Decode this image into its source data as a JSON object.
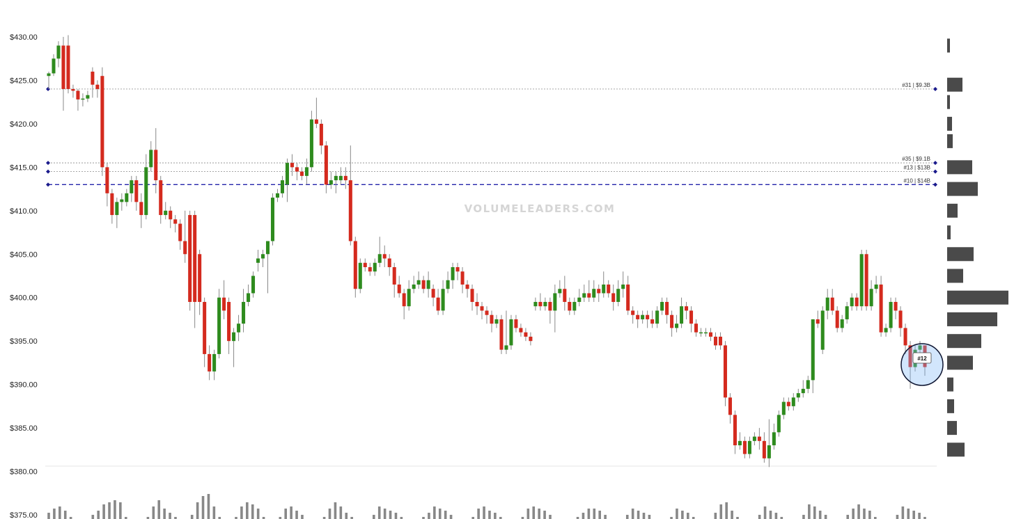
{
  "watermark": "VOLUMELEADERS.COM",
  "colors": {
    "up": "#2e8b1e",
    "down": "#d42a1e",
    "wick": "#888888",
    "volume_bar": "#888888",
    "profile_bar": "#4a4a4a",
    "level_solid": "#2222aa",
    "level_dash": "#999999",
    "marker": "#1a1a8c",
    "highlight": "#7fb6f5"
  },
  "chart_data": {
    "type": "candlestick",
    "ylim": [
      375,
      430
    ],
    "y_ticks": [
      "$430.00",
      "$425.00",
      "$420.00",
      "$415.00",
      "$410.00",
      "$405.00",
      "$400.00",
      "$395.00",
      "$390.00",
      "$385.00",
      "$380.00",
      "$375.00"
    ],
    "y_tick_values": [
      430,
      425,
      420,
      415,
      410,
      405,
      400,
      395,
      390,
      385,
      380,
      375
    ],
    "candles": [
      [
        425.5,
        425.8,
        424.0,
        426.0
      ],
      [
        425.8,
        427.5,
        425.5,
        428.0
      ],
      [
        427.5,
        429.0,
        426.5,
        429.5
      ],
      [
        429.0,
        424.0,
        421.5,
        430.0
      ],
      [
        429.0,
        424.0,
        423.5,
        430.2
      ],
      [
        424.0,
        423.8,
        423.0,
        424.5
      ],
      [
        423.8,
        422.8,
        421.5,
        424.0
      ],
      [
        422.8,
        422.9,
        422.0,
        423.5
      ],
      [
        422.9,
        423.3,
        422.5,
        423.8
      ],
      [
        426.0,
        424.5,
        423.0,
        426.5
      ],
      [
        424.5,
        424.0,
        423.0,
        425.0
      ],
      [
        425.5,
        415.0,
        414.0,
        426.5
      ],
      [
        415.0,
        412.0,
        410.5,
        415.5
      ],
      [
        412.0,
        409.5,
        408.5,
        412.5
      ],
      [
        409.5,
        411.0,
        408.0,
        411.5
      ],
      [
        411.0,
        411.3,
        410.0,
        412.0
      ],
      [
        411.0,
        412.0,
        410.5,
        412.5
      ],
      [
        412.0,
        413.5,
        411.0,
        414.0
      ],
      [
        413.5,
        411.0,
        410.0,
        414.0
      ],
      [
        411.0,
        409.5,
        408.0,
        412.0
      ],
      [
        409.5,
        415.0,
        409.0,
        416.5
      ],
      [
        415.0,
        417.0,
        414.5,
        418.0
      ],
      [
        417.0,
        413.5,
        412.0,
        419.5
      ],
      [
        413.5,
        409.5,
        408.5,
        414.0
      ],
      [
        409.5,
        410.0,
        409.0,
        411.0
      ],
      [
        410.0,
        409.0,
        408.0,
        410.5
      ],
      [
        409.0,
        408.5,
        407.5,
        409.5
      ],
      [
        408.5,
        406.5,
        405.5,
        409.0
      ],
      [
        406.5,
        405.0,
        404.0,
        410.0
      ],
      [
        409.5,
        399.5,
        398.5,
        410.0
      ],
      [
        409.5,
        399.5,
        396.5,
        410.0
      ],
      [
        405.0,
        399.5,
        398.0,
        405.5
      ],
      [
        399.5,
        393.5,
        392.0,
        400.0
      ],
      [
        393.5,
        391.5,
        390.5,
        394.5
      ],
      [
        391.5,
        393.5,
        390.5,
        394.0
      ],
      [
        393.5,
        400.0,
        393.0,
        401.0
      ],
      [
        400.0,
        398.5,
        397.5,
        402.0
      ],
      [
        399.5,
        395.0,
        393.5,
        400.0
      ],
      [
        395.0,
        396.0,
        392.0,
        396.5
      ],
      [
        396.0,
        397.0,
        395.0,
        398.0
      ],
      [
        397.0,
        399.5,
        396.0,
        401.0
      ],
      [
        399.5,
        400.5,
        399.0,
        401.5
      ],
      [
        400.5,
        402.5,
        400.0,
        403.0
      ],
      [
        404.0,
        404.5,
        403.0,
        405.5
      ],
      [
        404.5,
        405.0,
        403.5,
        405.5
      ],
      [
        405.0,
        406.5,
        400.5,
        406.5
      ],
      [
        406.5,
        411.5,
        406.0,
        412.0
      ],
      [
        411.5,
        412.0,
        411.0,
        412.5
      ],
      [
        412.0,
        413.5,
        411.5,
        414.0
      ],
      [
        413.0,
        415.5,
        411.0,
        416.0
      ],
      [
        415.5,
        415.0,
        414.0,
        416.5
      ],
      [
        415.0,
        414.5,
        413.5,
        415.5
      ],
      [
        414.5,
        414.0,
        413.5,
        415.0
      ],
      [
        414.0,
        415.0,
        413.0,
        416.0
      ],
      [
        415.0,
        420.5,
        414.5,
        421.5
      ],
      [
        420.5,
        420.0,
        419.5,
        423.0
      ],
      [
        420.0,
        417.5,
        416.5,
        420.5
      ],
      [
        417.5,
        413.0,
        412.0,
        418.0
      ],
      [
        413.0,
        413.5,
        412.5,
        414.5
      ],
      [
        413.5,
        414.0,
        412.0,
        414.5
      ],
      [
        413.5,
        414.0,
        413.0,
        415.0
      ],
      [
        414.0,
        413.5,
        412.5,
        415.0
      ],
      [
        413.5,
        406.5,
        406.0,
        417.5
      ],
      [
        406.5,
        401.0,
        400.0,
        407.0
      ],
      [
        401.0,
        404.0,
        400.5,
        404.5
      ],
      [
        404.0,
        403.5,
        403.0,
        404.5
      ],
      [
        403.5,
        403.0,
        402.5,
        404.0
      ],
      [
        403.0,
        404.0,
        402.5,
        404.5
      ],
      [
        404.0,
        405.0,
        403.5,
        407.0
      ],
      [
        405.0,
        404.5,
        403.5,
        406.0
      ],
      [
        404.5,
        403.5,
        402.5,
        405.0
      ],
      [
        403.5,
        401.5,
        400.0,
        404.0
      ],
      [
        401.5,
        400.5,
        400.0,
        402.5
      ],
      [
        400.5,
        399.0,
        397.5,
        401.0
      ],
      [
        399.0,
        401.0,
        398.5,
        402.0
      ],
      [
        401.0,
        401.5,
        400.5,
        402.5
      ],
      [
        401.5,
        402.0,
        401.0,
        403.0
      ],
      [
        402.0,
        401.0,
        400.5,
        402.5
      ],
      [
        401.0,
        402.0,
        400.0,
        403.0
      ],
      [
        401.0,
        400.0,
        399.0,
        401.5
      ],
      [
        400.0,
        398.5,
        398.0,
        401.0
      ],
      [
        398.5,
        401.0,
        398.0,
        402.0
      ],
      [
        401.0,
        402.0,
        400.5,
        403.0
      ],
      [
        402.0,
        403.5,
        401.0,
        404.0
      ],
      [
        403.5,
        403.0,
        402.0,
        404.0
      ],
      [
        403.0,
        401.5,
        400.5,
        403.5
      ],
      [
        401.5,
        401.0,
        400.0,
        402.0
      ],
      [
        401.0,
        399.5,
        398.5,
        401.5
      ],
      [
        399.5,
        399.0,
        398.0,
        400.5
      ],
      [
        399.0,
        398.5,
        397.5,
        399.5
      ],
      [
        398.5,
        398.0,
        397.0,
        399.0
      ],
      [
        398.0,
        397.0,
        396.0,
        398.5
      ],
      [
        397.0,
        397.5,
        396.5,
        398.0
      ],
      [
        397.5,
        394.0,
        393.5,
        398.0
      ],
      [
        394.0,
        394.5,
        393.5,
        398.5
      ],
      [
        394.5,
        397.5,
        394.0,
        398.0
      ],
      [
        397.5,
        396.5,
        396.0,
        398.0
      ],
      [
        396.5,
        396.0,
        395.5,
        397.0
      ],
      [
        396.0,
        395.5,
        395.0,
        396.5
      ],
      [
        395.5,
        395.0,
        394.5,
        396.0
      ],
      [
        399.0,
        399.5,
        398.5,
        400.0
      ],
      [
        399.5,
        399.0,
        398.5,
        400.5
      ],
      [
        399.0,
        399.5,
        398.5,
        400.0
      ],
      [
        399.5,
        398.5,
        397.0,
        400.0
      ],
      [
        398.5,
        400.5,
        396.0,
        401.5
      ],
      [
        400.5,
        401.0,
        400.0,
        402.0
      ],
      [
        401.0,
        399.5,
        398.5,
        402.5
      ],
      [
        399.5,
        398.5,
        398.0,
        400.0
      ],
      [
        398.5,
        399.5,
        398.0,
        400.0
      ],
      [
        399.5,
        400.0,
        399.0,
        401.0
      ],
      [
        400.0,
        400.5,
        399.5,
        401.5
      ],
      [
        400.5,
        400.0,
        399.5,
        402.0
      ],
      [
        400.0,
        401.0,
        399.5,
        402.0
      ],
      [
        401.0,
        400.5,
        399.5,
        401.5
      ],
      [
        400.5,
        401.5,
        400.0,
        403.0
      ],
      [
        401.5,
        400.5,
        400.0,
        402.0
      ],
      [
        400.5,
        399.5,
        398.5,
        401.5
      ],
      [
        399.5,
        401.0,
        399.0,
        402.0
      ],
      [
        401.0,
        401.5,
        400.0,
        403.0
      ],
      [
        401.5,
        398.5,
        398.0,
        402.5
      ],
      [
        398.5,
        398.0,
        397.0,
        399.0
      ],
      [
        398.0,
        397.5,
        396.5,
        398.5
      ],
      [
        397.5,
        398.0,
        397.0,
        398.5
      ],
      [
        398.0,
        397.5,
        396.5,
        398.5
      ],
      [
        397.5,
        397.0,
        396.5,
        398.5
      ],
      [
        397.0,
        398.5,
        396.5,
        399.0
      ],
      [
        398.5,
        399.5,
        398.0,
        400.0
      ],
      [
        399.5,
        398.0,
        397.0,
        400.0
      ],
      [
        398.0,
        396.5,
        395.5,
        398.5
      ],
      [
        396.5,
        397.0,
        396.0,
        398.0
      ],
      [
        397.0,
        399.0,
        396.5,
        400.0
      ],
      [
        399.0,
        398.5,
        397.5,
        399.5
      ],
      [
        398.5,
        397.0,
        396.0,
        399.0
      ],
      [
        397.0,
        396.0,
        395.5,
        397.5
      ],
      [
        396.0,
        396.0,
        395.5,
        396.5
      ],
      [
        396.0,
        396.0,
        395.5,
        396.5
      ],
      [
        396.0,
        395.5,
        395.0,
        396.5
      ],
      [
        395.5,
        394.5,
        394.0,
        396.0
      ],
      [
        395.5,
        394.5,
        394.0,
        396.0
      ],
      [
        394.5,
        388.5,
        387.5,
        395.0
      ],
      [
        388.5,
        386.5,
        385.5,
        389.0
      ],
      [
        386.5,
        383.0,
        382.0,
        387.0
      ],
      [
        383.0,
        383.5,
        382.5,
        384.5
      ],
      [
        383.5,
        382.0,
        381.5,
        384.0
      ],
      [
        382.0,
        383.5,
        381.5,
        384.0
      ],
      [
        383.5,
        384.0,
        383.0,
        384.5
      ],
      [
        384.0,
        383.5,
        382.5,
        385.0
      ],
      [
        383.5,
        381.5,
        381.0,
        384.5
      ],
      [
        381.5,
        383.0,
        380.5,
        386.0
      ],
      [
        383.0,
        384.5,
        382.5,
        385.5
      ],
      [
        384.5,
        386.5,
        384.0,
        387.0
      ],
      [
        386.5,
        388.0,
        386.0,
        388.5
      ],
      [
        388.0,
        387.5,
        387.0,
        388.5
      ],
      [
        387.5,
        388.5,
        387.0,
        389.0
      ],
      [
        388.5,
        389.0,
        388.0,
        389.5
      ],
      [
        389.0,
        389.5,
        388.5,
        390.5
      ],
      [
        389.5,
        390.5,
        389.0,
        391.0
      ],
      [
        390.5,
        397.5,
        389.0,
        397.5
      ],
      [
        397.5,
        397.0,
        396.5,
        398.5
      ],
      [
        394.0,
        398.5,
        393.5,
        399.0
      ],
      [
        398.5,
        400.0,
        397.5,
        401.0
      ],
      [
        400.0,
        398.5,
        398.0,
        401.0
      ],
      [
        398.5,
        396.5,
        396.0,
        399.0
      ],
      [
        396.5,
        397.5,
        396.0,
        398.0
      ],
      [
        397.5,
        399.0,
        397.0,
        399.5
      ],
      [
        399.0,
        400.0,
        398.5,
        400.5
      ],
      [
        400.0,
        399.0,
        398.5,
        400.5
      ],
      [
        399.0,
        405.0,
        398.5,
        405.5
      ],
      [
        405.0,
        399.0,
        398.5,
        405.5
      ],
      [
        399.0,
        401.0,
        398.5,
        402.0
      ],
      [
        401.0,
        401.5,
        400.5,
        402.5
      ],
      [
        401.5,
        396.0,
        395.5,
        402.5
      ],
      [
        396.0,
        396.5,
        395.5,
        397.0
      ],
      [
        396.5,
        399.5,
        396.0,
        400.0
      ],
      [
        399.5,
        398.5,
        397.5,
        400.0
      ],
      [
        398.5,
        396.5,
        395.5,
        399.0
      ],
      [
        396.5,
        394.5,
        393.5,
        397.0
      ],
      [
        394.5,
        392.0,
        389.5,
        395.0
      ],
      [
        392.0,
        394.0,
        391.5,
        394.5
      ],
      [
        394.0,
        394.5,
        393.5,
        395.0
      ],
      [
        394.5,
        392.0,
        391.0,
        394.5
      ]
    ],
    "levels": [
      {
        "label": "#31 | $9.3B",
        "price": 424.0,
        "style": "dotted"
      },
      {
        "label": "#35 | $9.1B",
        "price": 415.5,
        "style": "dotted"
      },
      {
        "label": "#13 | $13B",
        "price": 414.5,
        "style": "dotted"
      },
      {
        "label": "#10 | $14B",
        "price": 413.0,
        "style": "dashed"
      }
    ],
    "volume": [
      3,
      5,
      6,
      4,
      1,
      0,
      0,
      0,
      2,
      4,
      7,
      8,
      9,
      8,
      1,
      0,
      0,
      0,
      1,
      6,
      9,
      5,
      3,
      1,
      0,
      0,
      2,
      8,
      11,
      12,
      6,
      1,
      0,
      0,
      1,
      6,
      8,
      7,
      5,
      1,
      0,
      0,
      1,
      5,
      6,
      4,
      2,
      0,
      0,
      0,
      1,
      5,
      8,
      6,
      3,
      1,
      0,
      0,
      0,
      2,
      6,
      5,
      4,
      3,
      1,
      0,
      0,
      0,
      1,
      3,
      6,
      5,
      4,
      2,
      0,
      0,
      0,
      1,
      5,
      6,
      4,
      3,
      1,
      0,
      0,
      0,
      1,
      5,
      6,
      5,
      4,
      2,
      0,
      0,
      0,
      0,
      1,
      3,
      5,
      5,
      4,
      2,
      0,
      0,
      0,
      2,
      5,
      4,
      3,
      2,
      0,
      0,
      0,
      1,
      5,
      4,
      3,
      1,
      0,
      0,
      0,
      3,
      7,
      8,
      4,
      1,
      0,
      0,
      0,
      2,
      6,
      4,
      3,
      1,
      0,
      0,
      0,
      2,
      7,
      6,
      4,
      2,
      0,
      0,
      0,
      2,
      5,
      7,
      5,
      4,
      1,
      0,
      0,
      0,
      2,
      6,
      5,
      4,
      3,
      1
    ],
    "volume_profile": [
      {
        "price": 429.0,
        "size": 4
      },
      {
        "price": 424.5,
        "size": 22
      },
      {
        "price": 422.5,
        "size": 4
      },
      {
        "price": 420.0,
        "size": 7
      },
      {
        "price": 418.0,
        "size": 8
      },
      {
        "price": 415.0,
        "size": 36
      },
      {
        "price": 412.5,
        "size": 44
      },
      {
        "price": 410.0,
        "size": 15
      },
      {
        "price": 407.5,
        "size": 5
      },
      {
        "price": 405.0,
        "size": 38
      },
      {
        "price": 402.5,
        "size": 23
      },
      {
        "price": 400.0,
        "size": 88
      },
      {
        "price": 397.5,
        "size": 72
      },
      {
        "price": 395.0,
        "size": 49
      },
      {
        "price": 392.5,
        "size": 37
      },
      {
        "price": 390.0,
        "size": 9
      },
      {
        "price": 387.5,
        "size": 10
      },
      {
        "price": 385.0,
        "size": 14
      },
      {
        "price": 382.5,
        "size": 25
      }
    ],
    "highlight": {
      "label": "#12",
      "price": 392.5
    }
  }
}
